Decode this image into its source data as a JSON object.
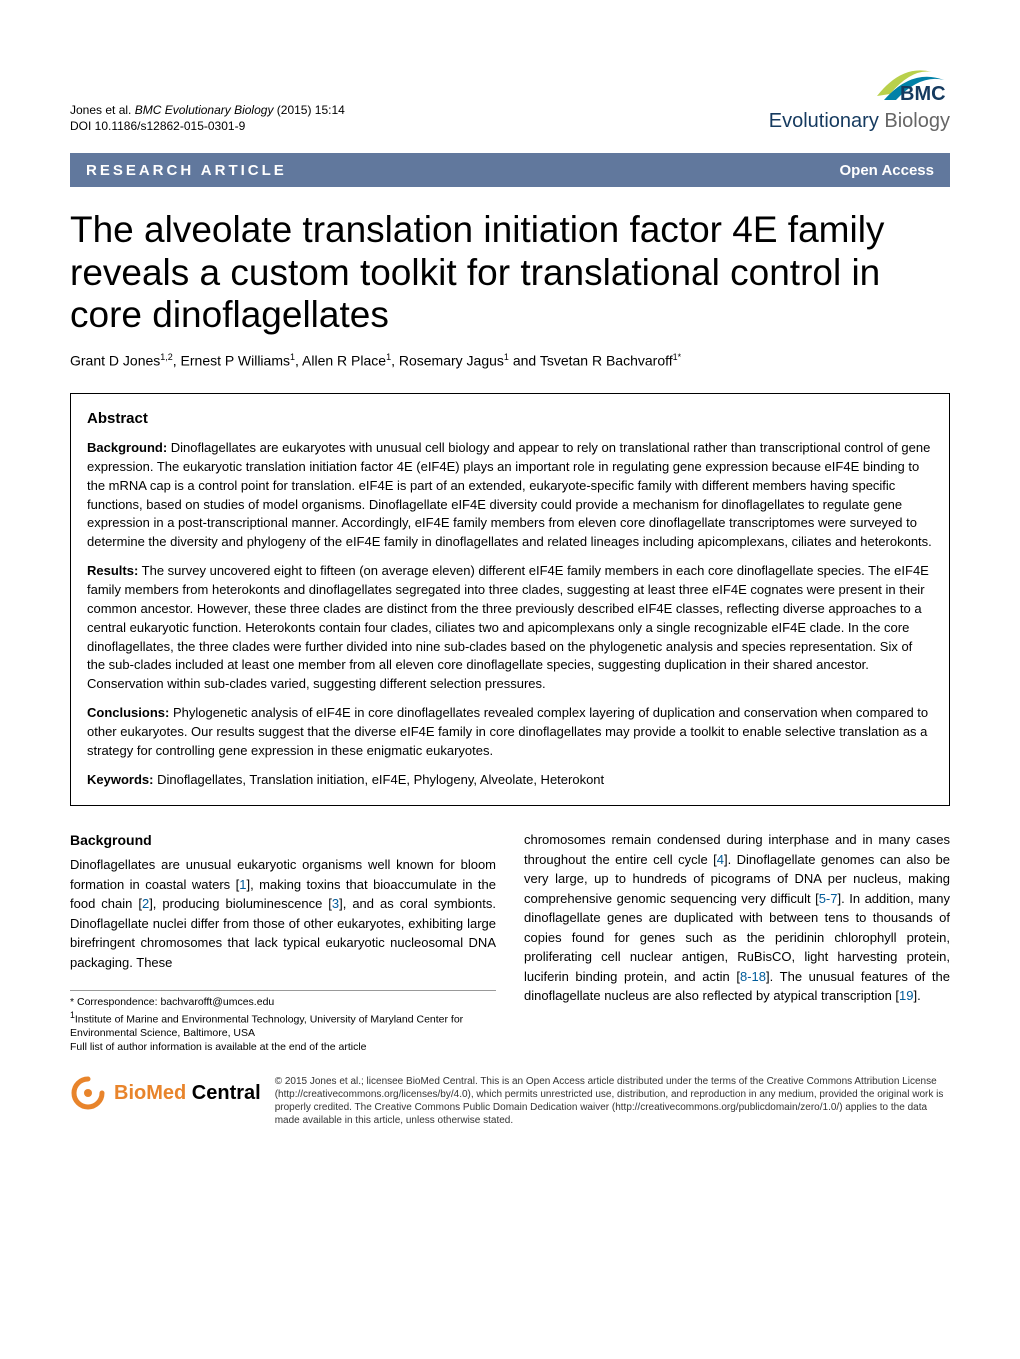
{
  "header": {
    "citation_authors": "Jones et al.",
    "citation_journal": "BMC Evolutionary Biology",
    "citation_year_vol": " (2015) 15:14",
    "doi": "DOI 10.1186/s12862-015-0301-9",
    "logo_brand": "BMC",
    "logo_journal_1": "Evolutionary ",
    "logo_journal_2": "Biology",
    "logo_colors": {
      "swoosh1": "#b9d04b",
      "swoosh2": "#0081a7",
      "text1": "#153a5f",
      "text2": "#666666"
    }
  },
  "banner": {
    "left": "RESEARCH ARTICLE",
    "right": "Open Access",
    "bg": "#61789d"
  },
  "title": "The alveolate translation initiation factor 4E family reveals a custom toolkit for translational control in core dinoflagellates",
  "authors_html": "Grant D Jones<sup>1,2</sup>, Ernest P Williams<sup>1</sup>, Allen R Place<sup>1</sup>, Rosemary Jagus<sup>1</sup> and Tsvetan R Bachvaroff<sup>1*</sup>",
  "abstract": {
    "heading": "Abstract",
    "background_label": "Background:",
    "background_text": " Dinoflagellates are eukaryotes with unusual cell biology and appear to rely on translational rather than transcriptional control of gene expression. The eukaryotic translation initiation factor 4E (eIF4E) plays an important role in regulating gene expression because eIF4E binding to the mRNA cap is a control point for translation. eIF4E is part of an extended, eukaryote-specific family with different members having specific functions, based on studies of model organisms. Dinoflagellate eIF4E diversity could provide a mechanism for dinoflagellates to regulate gene expression in a post-transcriptional manner. Accordingly, eIF4E family members from eleven core dinoflagellate transcriptomes were surveyed to determine the diversity and phylogeny of the eIF4E family in dinoflagellates and related lineages including apicomplexans, ciliates and heterokonts.",
    "results_label": "Results:",
    "results_text": " The survey uncovered eight to fifteen (on average eleven) different eIF4E family members in each core dinoflagellate species. The eIF4E family members from heterokonts and dinoflagellates segregated into three clades, suggesting at least three eIF4E cognates were present in their common ancestor. However, these three clades are distinct from the three previously described eIF4E classes, reflecting diverse approaches to a central eukaryotic function. Heterokonts contain four clades, ciliates two and apicomplexans only a single recognizable eIF4E clade. In the core dinoflagellates, the three clades were further divided into nine sub-clades based on the phylogenetic analysis and species representation. Six of the sub-clades included at least one member from all eleven core dinoflagellate species, suggesting duplication in their shared ancestor. Conservation within sub-clades varied, suggesting different selection pressures.",
    "conclusions_label": "Conclusions:",
    "conclusions_text": " Phylogenetic analysis of eIF4E in core dinoflagellates revealed complex layering of duplication and conservation when compared to other eukaryotes. Our results suggest that the diverse eIF4E family in core dinoflagellates may provide a toolkit to enable selective translation as a strategy for controlling gene expression in these enigmatic eukaryotes.",
    "keywords_label": "Keywords:",
    "keywords_text": " Dinoflagellates, Translation initiation, eIF4E, Phylogeny, Alveolate, Heterokont"
  },
  "body": {
    "section_heading": "Background",
    "col1": "Dinoflagellates are unusual eukaryotic organisms well known for bloom formation in coastal waters [1], making toxins that bioaccumulate in the food chain [2], producing bioluminescence [3], and as coral symbionts. Dinoflagellate nuclei differ from those of other eukaryotes, exhibiting large birefringent chromosomes that lack typical eukaryotic nucleosomal DNA packaging. These",
    "col2": "chromosomes remain condensed during interphase and in many cases throughout the entire cell cycle [4]. Dinoflagellate genomes can also be very large, up to hundreds of picograms of DNA per nucleus, making comprehensive genomic sequencing very difficult [5-7]. In addition, many dinoflagellate genes are duplicated with between tens to thousands of copies found for genes such as the peridinin chlorophyll protein, proliferating cell nuclear antigen, RuBisCO, light harvesting protein, luciferin binding protein, and actin [8-18]. The unusual features of the dinoflagellate nucleus are also reflected by atypical transcription [19]."
  },
  "footer": {
    "correspondence": "* Correspondence: bachvarofft@umces.edu",
    "affiliation": "1Institute of Marine and Environmental Technology, University of Maryland Center for Environmental Science, Baltimore, USA",
    "author_info": "Full list of author information is available at the end of the article",
    "bmc_logo_text": "BioMed Central",
    "bmc_logo_color": "#e8842b",
    "copyright": "© 2015 Jones et al.; licensee BioMed Central. This is an Open Access article distributed under the terms of the Creative Commons Attribution License (http://creativecommons.org/licenses/by/4.0), which permits unrestricted use, distribution, and reproduction in any medium, provided the original work is properly credited. The Creative Commons Public Domain Dedication waiver (http://creativecommons.org/publicdomain/zero/1.0/) applies to the data made available in this article, unless otherwise stated."
  }
}
